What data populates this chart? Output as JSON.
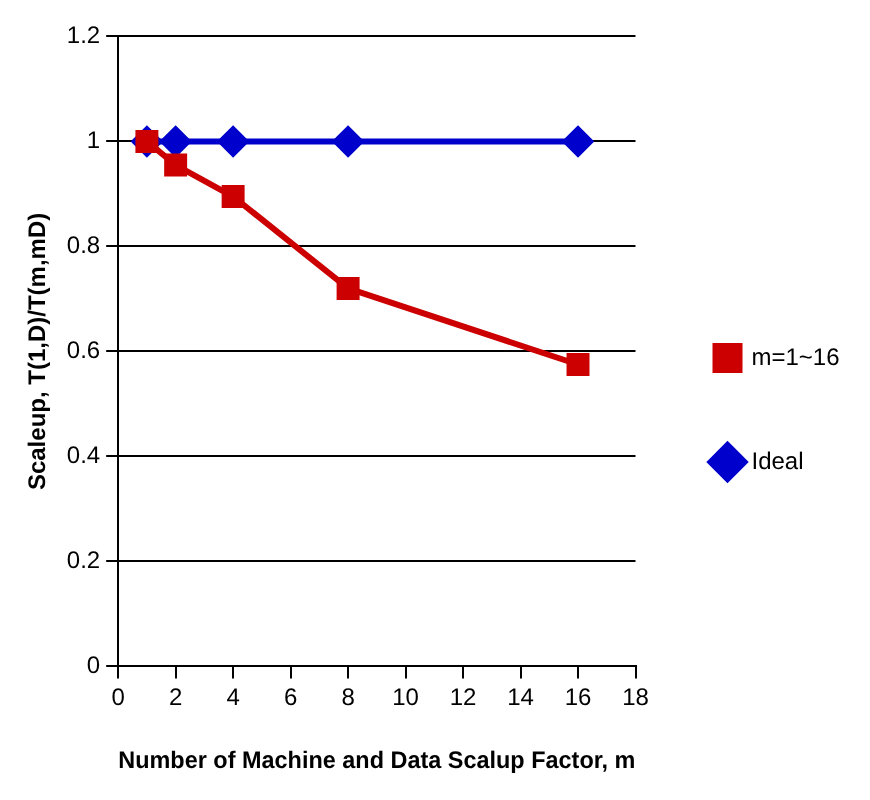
{
  "chart_data": {
    "type": "line",
    "xlabel": "Number of Machine and Data Scalup Factor, m",
    "ylabel": "Scaleup, T(1,D)/T(m,mD)",
    "x": [
      1,
      2,
      4,
      8,
      16
    ],
    "series": [
      {
        "name": "Ideal",
        "color": "#0000cc",
        "marker": "diamond",
        "values": [
          1,
          1,
          1,
          1,
          1
        ]
      },
      {
        "name": "m=1~16",
        "color": "#cc0000",
        "marker": "square",
        "values": [
          1,
          0.955,
          0.895,
          0.72,
          0.575
        ]
      }
    ],
    "xlim": [
      0,
      18
    ],
    "xticks": [
      0,
      2,
      4,
      6,
      8,
      10,
      12,
      14,
      16,
      18
    ],
    "ylim": [
      0,
      1.2
    ],
    "yticks": [
      0,
      0.2,
      0.4,
      0.6,
      0.8,
      1,
      1.2
    ],
    "grid": "y",
    "legend": "right",
    "line_style": "solid"
  }
}
